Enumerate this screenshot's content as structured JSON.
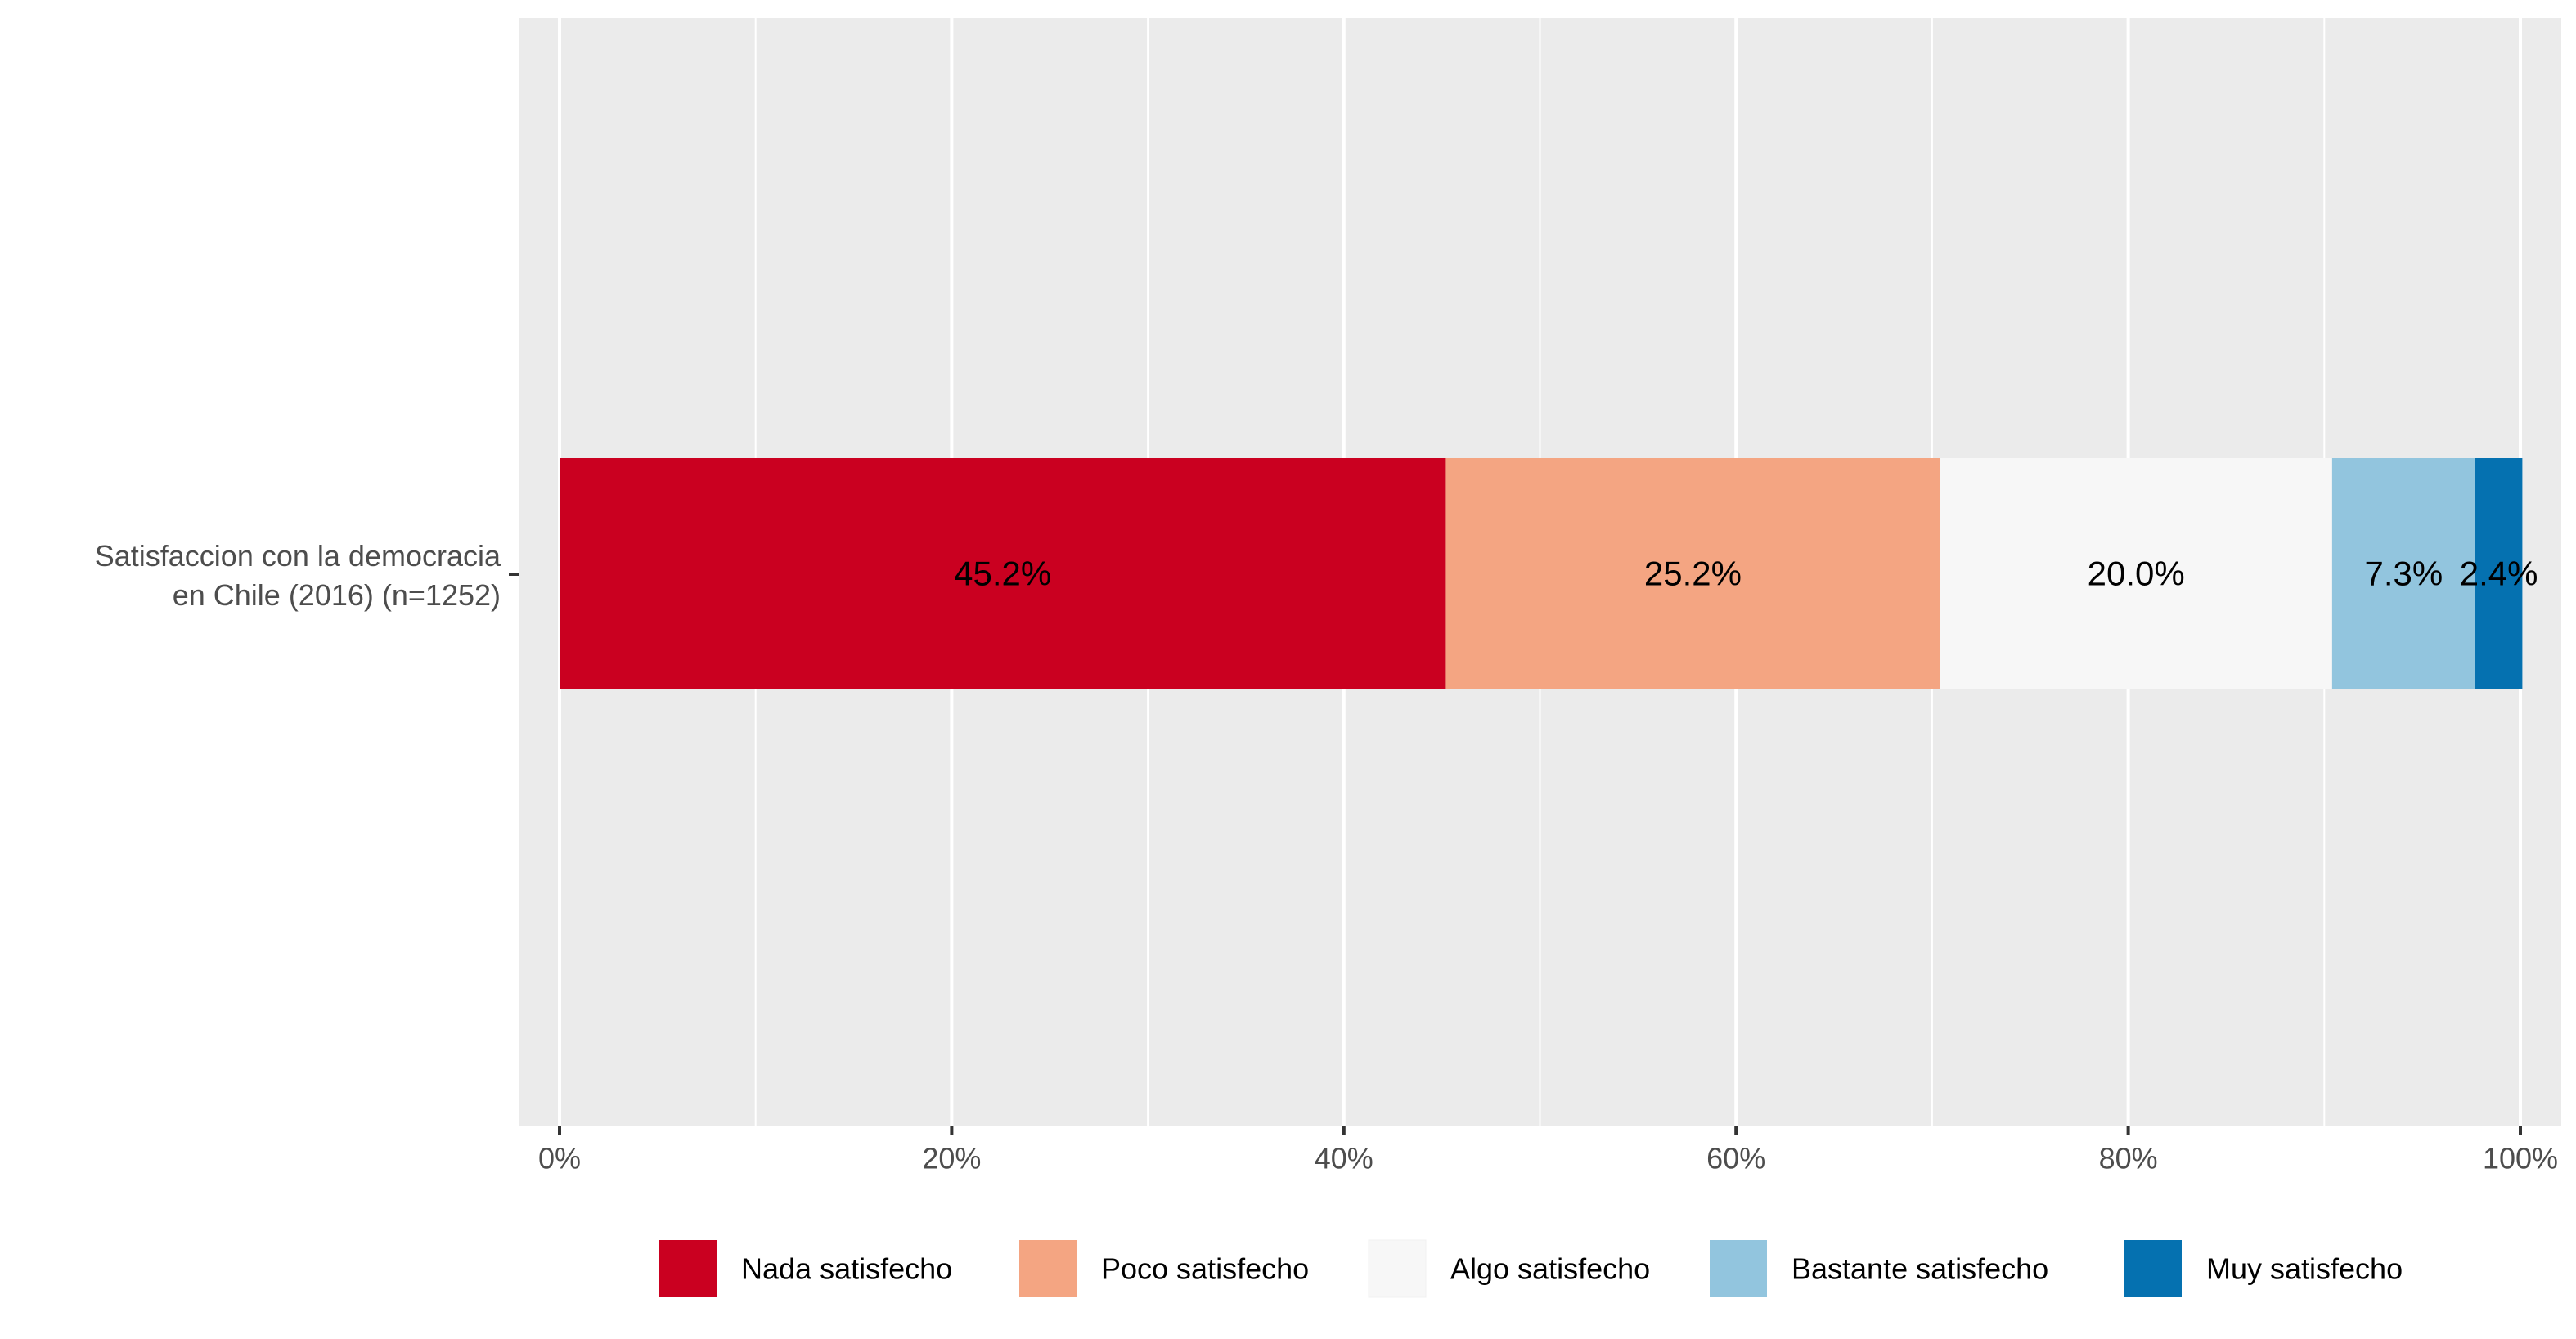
{
  "chart_data": {
    "type": "bar",
    "orientation": "horizontal",
    "stacked": true,
    "title": "",
    "xlabel": "",
    "ylabel": "",
    "categories": [
      "Satisfaccion con la democracia en Chile (2016) (n=1252)"
    ],
    "category_label_lines": [
      [
        "Satisfaccion con la democracia",
        "en Chile (2016) (n=1252)"
      ]
    ],
    "series": [
      {
        "name": "Nada satisfecho",
        "values": [
          45.2
        ],
        "label": "45.2%",
        "color": "#ca0020"
      },
      {
        "name": "Poco satisfecho",
        "values": [
          25.2
        ],
        "label": "25.2%",
        "color": "#f4a582"
      },
      {
        "name": "Algo satisfecho",
        "values": [
          20.0
        ],
        "label": "20.0%",
        "color": "#f7f7f7"
      },
      {
        "name": "Bastante satisfecho",
        "values": [
          7.3
        ],
        "label": "7.3%",
        "color": "#92c5de"
      },
      {
        "name": "Muy satisfecho",
        "values": [
          2.4
        ],
        "label": "2.4%",
        "color": "#0571b0"
      }
    ],
    "xlim": [
      0,
      100
    ],
    "x_ticks": [
      0,
      20,
      40,
      60,
      80,
      100
    ],
    "x_tick_labels": [
      "0%",
      "20%",
      "40%",
      "60%",
      "80%",
      "100%"
    ],
    "grid": true,
    "legend_position": "bottom",
    "panel_background": "#ebebeb",
    "grid_color": "#ffffff"
  }
}
